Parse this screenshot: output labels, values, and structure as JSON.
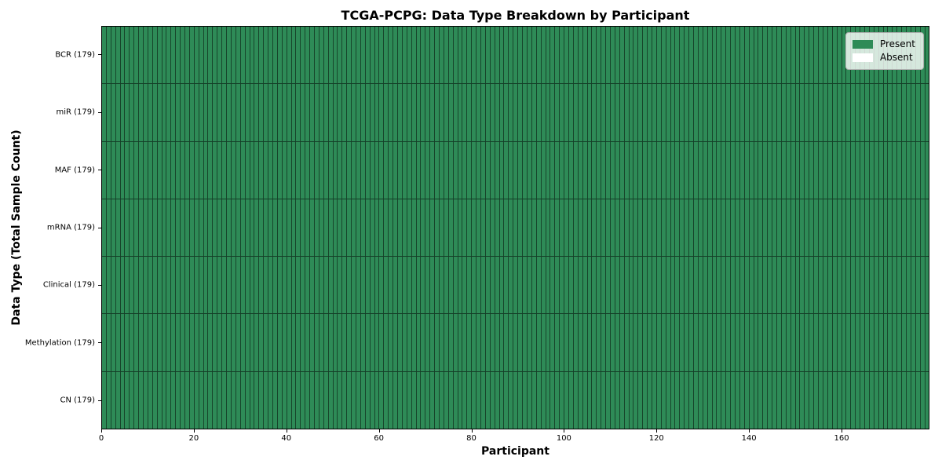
{
  "chart_data": {
    "type": "heatmap",
    "title": "TCGA-PCPG: Data Type Breakdown by Participant",
    "xlabel": "Participant",
    "ylabel": "Data Type (Total Sample Count)",
    "n_participants": 179,
    "x_range": [
      0,
      179
    ],
    "x_ticks": [
      0,
      20,
      40,
      60,
      80,
      100,
      120,
      140,
      160
    ],
    "rows": [
      {
        "label": "BCR (179)",
        "data_type": "BCR",
        "total_sample_count": 179,
        "present_count": 179,
        "absent_count": 0
      },
      {
        "label": "miR (179)",
        "data_type": "miR",
        "total_sample_count": 179,
        "present_count": 179,
        "absent_count": 0
      },
      {
        "label": "MAF (179)",
        "data_type": "MAF",
        "total_sample_count": 179,
        "present_count": 179,
        "absent_count": 0
      },
      {
        "label": "mRNA (179)",
        "data_type": "mRNA",
        "total_sample_count": 179,
        "present_count": 179,
        "absent_count": 0
      },
      {
        "label": "Clinical (179)",
        "data_type": "Clinical",
        "total_sample_count": 179,
        "present_count": 179,
        "absent_count": 0
      },
      {
        "label": "Methylation (179)",
        "data_type": "Methylation",
        "total_sample_count": 179,
        "present_count": 179,
        "absent_count": 0
      },
      {
        "label": "CN (179)",
        "data_type": "CN",
        "total_sample_count": 179,
        "present_count": 179,
        "absent_count": 0
      }
    ],
    "cells_summary": "All 7 data types x 179 participants are Present (no Absent cells visible)",
    "legend": {
      "position": "upper right",
      "items": [
        {
          "label": "Present",
          "color": "#2e8b57"
        },
        {
          "label": "Absent",
          "color": "#ffffff"
        }
      ]
    },
    "colors": {
      "present": "#2e8b57",
      "absent": "#ffffff",
      "cell_edge": "rgba(0,0,0,0.50)",
      "spine": "#000000"
    },
    "grid": false
  }
}
